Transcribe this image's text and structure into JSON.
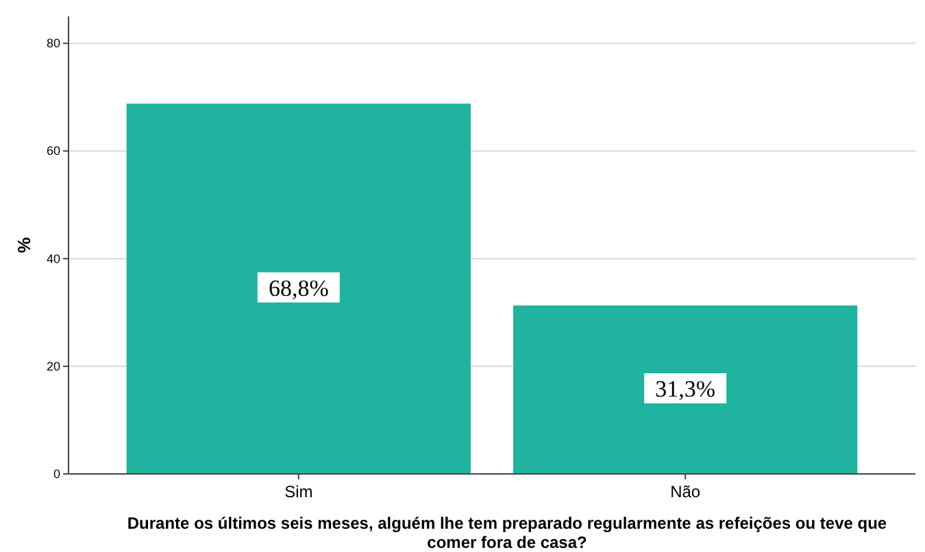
{
  "chart_data": {
    "type": "bar",
    "categories": [
      "Sim",
      "Não"
    ],
    "values": [
      68.8,
      31.3
    ],
    "color": "#1fb3a0",
    "value_labels": [
      "68,8%",
      "31,3%"
    ],
    "ylabel": "%",
    "xlabel": "Durante os últimos seis meses, alguém lhe tem preparado regularmente as refeições ou teve que comer fora de casa?",
    "ylim": [
      0,
      85
    ],
    "yticks": [
      0,
      20,
      40,
      60,
      80
    ],
    "grid": "y"
  }
}
